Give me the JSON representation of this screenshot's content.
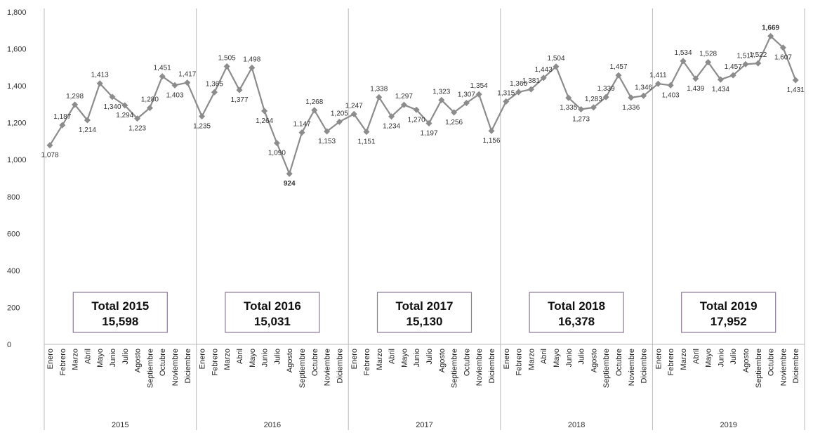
{
  "chart_data": {
    "type": "line",
    "ylim": [
      0,
      1800
    ],
    "yticks": [
      "0",
      "200",
      "400",
      "600",
      "800",
      "1,000",
      "1,200",
      "1,400",
      "1,600",
      "1,800"
    ],
    "months": [
      "Enero",
      "Febrero",
      "Marzo",
      "Abril",
      "Mayo",
      "Junio",
      "Julio",
      "Agosto",
      "Septiembre",
      "Octubre",
      "Noviembre",
      "Diciembre"
    ],
    "colors": {
      "line": "#8c8c8c",
      "min": "#2db84d",
      "max": "#e8202a",
      "grid": "#bbbbbb"
    },
    "years": [
      {
        "year": "2015",
        "total_title": "Total 2015",
        "total_value": "15,598",
        "values": [
          1078,
          1187,
          1298,
          1214,
          1413,
          1340,
          1294,
          1223,
          1280,
          1451,
          1403,
          1417
        ],
        "labels": [
          "1,078",
          "1,187",
          "1,298",
          "1,214",
          "1,413",
          "1,340",
          "1,294",
          "1,223",
          "1,280",
          "1,451",
          "1,403",
          "1,417"
        ]
      },
      {
        "year": "2016",
        "total_title": "Total 2016",
        "total_value": "15,031",
        "values": [
          1235,
          1365,
          1505,
          1377,
          1498,
          1264,
          1090,
          924,
          1147,
          1268,
          1153,
          1205
        ],
        "labels": [
          "1,235",
          "1,365",
          "1,505",
          "1,377",
          "1,498",
          "1,264",
          "1,090",
          "924",
          "1,147",
          "1,268",
          "1,153",
          "1,205"
        ]
      },
      {
        "year": "2017",
        "total_title": "Total 2017",
        "total_value": "15,130",
        "values": [
          1247,
          1151,
          1338,
          1234,
          1297,
          1270,
          1197,
          1323,
          1256,
          1307,
          1354,
          1156
        ],
        "labels": [
          "1,247",
          "1,151",
          "1,338",
          "1,234",
          "1,297",
          "1,270",
          "1,197",
          "1,323",
          "1,256",
          "1,307",
          "1,354",
          "1,156"
        ]
      },
      {
        "year": "2018",
        "total_title": "Total 2018",
        "total_value": "16,378",
        "values": [
          1315,
          1366,
          1381,
          1443,
          1504,
          1335,
          1273,
          1283,
          1339,
          1457,
          1336,
          1346
        ],
        "labels": [
          "1,315",
          "1,366",
          "1,381",
          "1,443",
          "1,504",
          "1,335",
          "1,273",
          "1,283",
          "1,339",
          "1,457",
          "1,336",
          "1,346"
        ]
      },
      {
        "year": "2019",
        "total_title": "Total 2019",
        "total_value": "17,952",
        "values": [
          1411,
          1403,
          1534,
          1439,
          1528,
          1434,
          1457,
          1517,
          1522,
          1669,
          1607,
          1431
        ],
        "labels": [
          "1,411",
          "1,403",
          "1,534",
          "1,439",
          "1,528",
          "1,434",
          "1,457",
          "1,517",
          "1,522",
          "1,669",
          "1,607",
          "1,431"
        ]
      }
    ],
    "min_point": {
      "year_index": 1,
      "month_index": 7
    },
    "max_point": {
      "year_index": 4,
      "month_index": 9
    }
  }
}
